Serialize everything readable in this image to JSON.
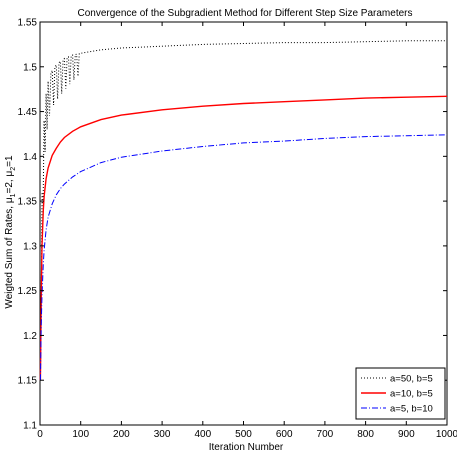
{
  "chart_data": {
    "type": "line",
    "title": "Convergence of the Subgradient Method for Different Step Size Parameters",
    "xlabel": "Iteration Number",
    "ylabel": "Weigted Sum of Rates, μ1=2, μ2=1",
    "ylabel_parts": {
      "main": "Weigted Sum of Rates, μ",
      "sub1": "1",
      "mid": "=2, μ",
      "sub2": "2",
      "end": "=1"
    },
    "xlim": [
      0,
      1000
    ],
    "ylim": [
      1.1,
      1.55
    ],
    "xticks": [
      0,
      100,
      200,
      300,
      400,
      500,
      600,
      700,
      800,
      900,
      1000
    ],
    "yticks": [
      1.1,
      1.15,
      1.2,
      1.25,
      1.3,
      1.35,
      1.4,
      1.45,
      1.5,
      1.55
    ],
    "ytick_labels": [
      "1.1",
      "1.15",
      "1.2",
      "1.25",
      "1.3",
      "1.35",
      "1.4",
      "1.45",
      "1.5",
      "1.55"
    ],
    "xtick_labels": [
      "0",
      "100",
      "200",
      "300",
      "400",
      "500",
      "600",
      "700",
      "800",
      "900",
      "1000"
    ],
    "grid": false,
    "legend_position": "bottom-right",
    "series": [
      {
        "name": "a=50, b=5",
        "color": "#000000",
        "style": "dotted",
        "oscillating": true,
        "x": [
          1,
          5,
          10,
          15,
          20,
          30,
          40,
          50,
          60,
          70,
          80,
          90,
          100,
          150,
          200,
          300,
          400,
          500,
          600,
          700,
          800,
          900,
          1000
        ],
        "y": [
          1.15,
          1.36,
          1.44,
          1.47,
          1.484,
          1.496,
          1.502,
          1.506,
          1.509,
          1.511,
          1.513,
          1.514,
          1.515,
          1.519,
          1.521,
          1.523,
          1.525,
          1.526,
          1.527,
          1.527,
          1.528,
          1.529,
          1.529
        ],
        "lower_y": [
          1.15,
          1.3,
          1.39,
          1.42,
          1.44,
          1.455,
          1.462,
          1.468,
          1.474,
          1.479,
          1.484,
          1.488,
          1.492,
          1.503,
          1.51,
          1.517,
          1.52,
          1.522,
          1.524,
          1.525,
          1.526,
          1.527,
          1.528
        ]
      },
      {
        "name": "a=10, b=5",
        "color": "#ff0000",
        "style": "solid",
        "x": [
          1,
          3,
          5,
          8,
          10,
          15,
          20,
          30,
          40,
          50,
          60,
          80,
          100,
          150,
          200,
          300,
          400,
          500,
          600,
          700,
          800,
          900,
          1000
        ],
        "y": [
          1.15,
          1.24,
          1.3,
          1.34,
          1.355,
          1.375,
          1.387,
          1.401,
          1.409,
          1.416,
          1.421,
          1.428,
          1.433,
          1.441,
          1.446,
          1.452,
          1.456,
          1.459,
          1.461,
          1.463,
          1.465,
          1.466,
          1.467
        ]
      },
      {
        "name": "a=5, b=10",
        "color": "#0000ff",
        "style": "dashdot",
        "x": [
          1,
          3,
          5,
          8,
          10,
          15,
          20,
          30,
          40,
          50,
          60,
          80,
          100,
          150,
          200,
          300,
          400,
          500,
          600,
          700,
          800,
          900,
          1000
        ],
        "y": [
          1.15,
          1.21,
          1.245,
          1.28,
          1.295,
          1.318,
          1.332,
          1.347,
          1.357,
          1.364,
          1.369,
          1.377,
          1.383,
          1.393,
          1.399,
          1.406,
          1.411,
          1.415,
          1.417,
          1.42,
          1.422,
          1.423,
          1.424
        ]
      }
    ]
  }
}
